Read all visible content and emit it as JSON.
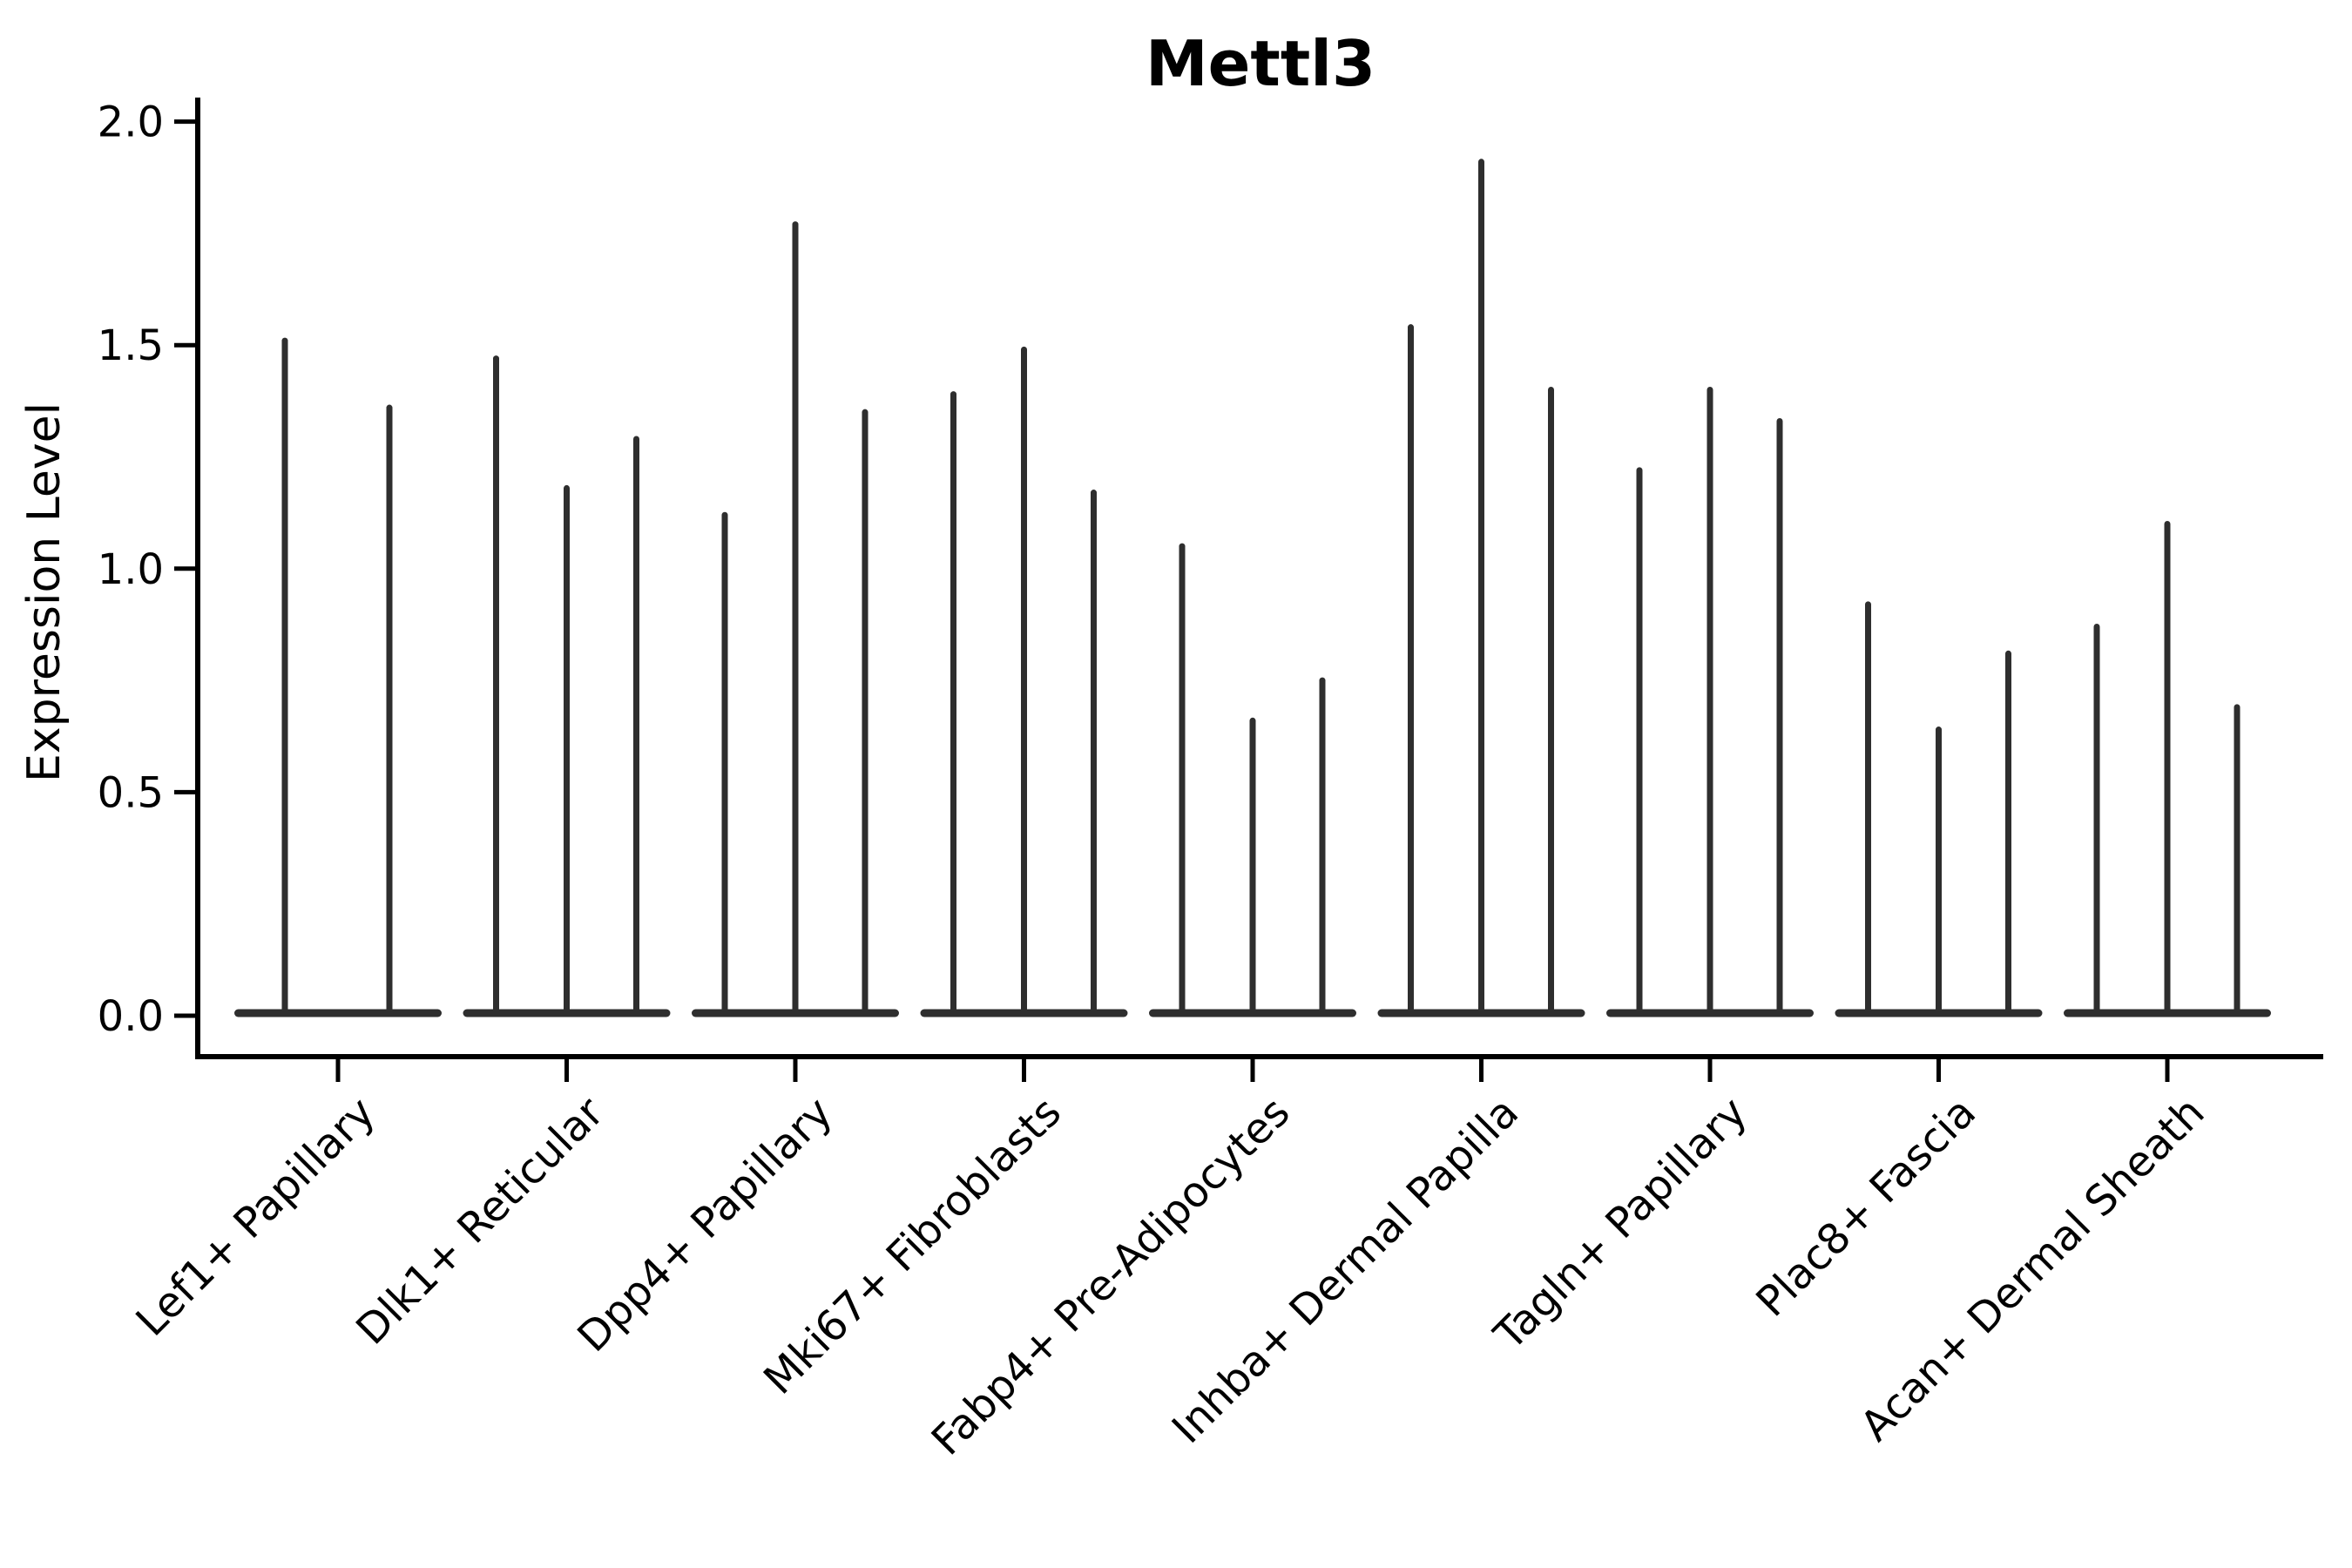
{
  "chart_data": {
    "type": "violin",
    "title": "Mettl3",
    "xlabel": "",
    "ylabel": "Expression Level",
    "ylim": [
      0.0,
      2.0
    ],
    "yticks": [
      {
        "value": 0.0,
        "label": "0.0"
      },
      {
        "value": 0.5,
        "label": "0.5"
      },
      {
        "value": 1.0,
        "label": "1.0"
      },
      {
        "value": 1.5,
        "label": "1.5"
      },
      {
        "value": 2.0,
        "label": "2.0"
      }
    ],
    "grid": false,
    "legend": "none",
    "categories": [
      "Lef1+ Papillary",
      "Dlk1+ Reticular",
      "Dpp4+ Papillary",
      "Mki67+ Fibroblasts",
      "Fabp4+ Pre-Adipocytes",
      "Inhba+ Dermal Papilla",
      "Tagln+ Papillary",
      "Plac8+ Fascia",
      "Acan+ Dermal Sheath"
    ],
    "series_note": "each category shows narrow needle violins: dense flat body at 0 and a thin spike up to the max expression value",
    "violin_max_values": [
      [
        1.51,
        1.36
      ],
      [
        1.47,
        1.18,
        1.29
      ],
      [
        1.12,
        1.77,
        1.35
      ],
      [
        1.39,
        1.49,
        1.17
      ],
      [
        1.05,
        0.66,
        0.75
      ],
      [
        1.54,
        1.91,
        1.4
      ],
      [
        1.22,
        1.4,
        1.33
      ],
      [
        0.92,
        0.64,
        0.81
      ],
      [
        0.87,
        1.1,
        0.69
      ]
    ],
    "violin_baseline_value": 0.0,
    "colors": {
      "violin": "#2e2e2e",
      "axis": "#000000",
      "background": "#ffffff"
    }
  }
}
